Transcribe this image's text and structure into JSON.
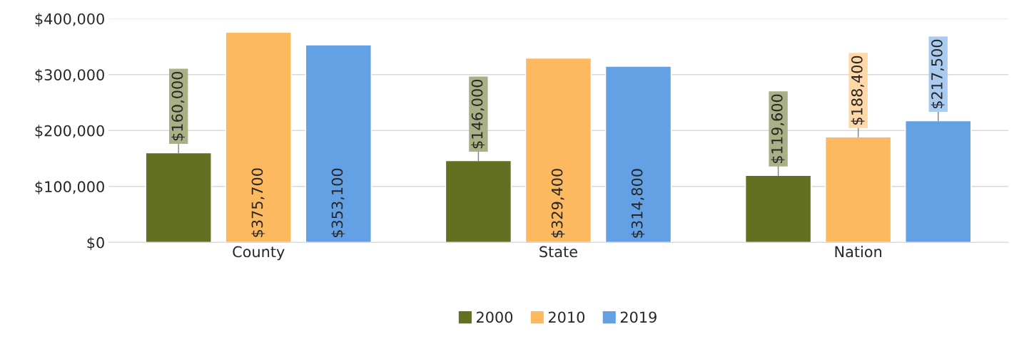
{
  "chart_data": {
    "type": "bar",
    "categories": [
      "County",
      "State",
      "Nation"
    ],
    "series": [
      {
        "name": "2000",
        "color": "#636f21",
        "values": [
          160000,
          146000,
          119600
        ],
        "value_labels": [
          "$160,000",
          "$146,000",
          "$119,600"
        ]
      },
      {
        "name": "2010",
        "color": "#fdb95f",
        "values": [
          375700,
          329400,
          188400
        ],
        "value_labels": [
          "$375,700",
          "$329,400",
          "$188,400"
        ]
      },
      {
        "name": "2019",
        "color": "#64a0e4",
        "values": [
          353100,
          314800,
          217500
        ],
        "value_labels": [
          "$353,100",
          "$314,800",
          "$217,500"
        ]
      }
    ],
    "ylim": [
      0,
      400000
    ],
    "yticks": [
      {
        "value": 0,
        "label": "$0"
      },
      {
        "value": 100000,
        "label": "$100,000"
      },
      {
        "value": 200000,
        "label": "$200,000"
      },
      {
        "value": 300000,
        "label": "$300,000"
      },
      {
        "value": 400000,
        "label": "$400,000"
      }
    ],
    "grid": "y",
    "legend": "bottom"
  }
}
